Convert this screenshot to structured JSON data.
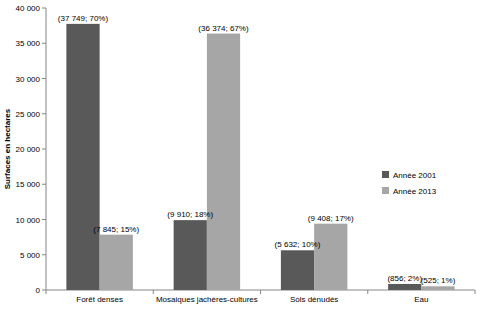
{
  "chart_data": {
    "type": "bar",
    "y_label": "Surfaces en hectares",
    "categories": [
      "Forêt denses",
      "Mosaiques jachères-cultures",
      "Sols dénudés",
      "Eau"
    ],
    "series": [
      {
        "name": "Année 2001",
        "color": "#595959",
        "values": [
          37749,
          9910,
          5632,
          856
        ],
        "value_labels": [
          "(37 749; 70%)",
          "(9 910; 18%)",
          "(5 632; 10%)",
          "(856; 2%)"
        ]
      },
      {
        "name": "Année 2013",
        "color": "#a6a6a6",
        "values": [
          7845,
          36374,
          9408,
          525
        ],
        "value_labels": [
          "(7 845; 15%)",
          "(36 374; 67%)",
          "(9 408; 17%)",
          "(525; 1%)"
        ]
      }
    ],
    "ylim": [
      0,
      40000
    ],
    "yticks": [
      0,
      {
        "value": 5000,
        "label": "5 000"
      },
      {
        "value": 10000,
        "label": "10 000"
      },
      {
        "value": 15000,
        "label": "15 000"
      },
      {
        "value": 20000,
        "label": "20 000"
      },
      {
        "value": 25000,
        "label": "25 000"
      },
      {
        "value": 30000,
        "label": "30 000"
      },
      {
        "value": 35000,
        "label": "35 000"
      },
      {
        "value": 40000,
        "label": "40 000"
      }
    ],
    "grid": false,
    "legend": "right",
    "data_labels": true
  }
}
